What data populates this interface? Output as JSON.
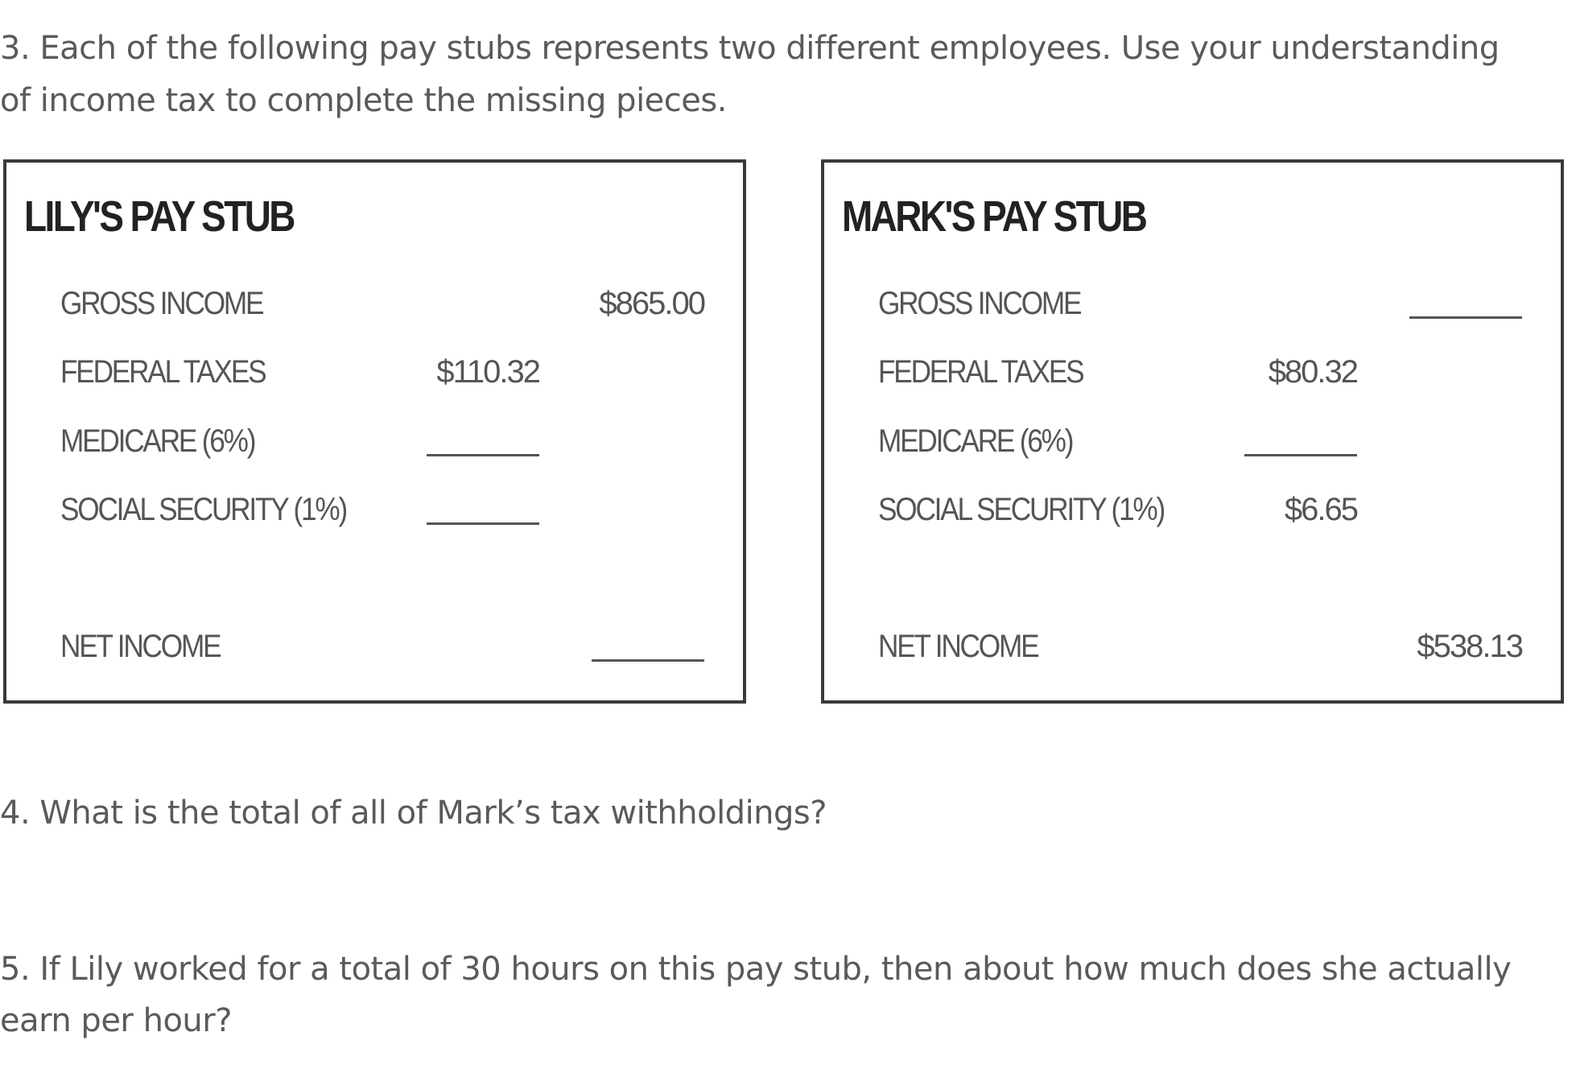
{
  "questions": {
    "q3_line1": "3.  Each of the following pay stubs represents two different employees.  Use your understanding",
    "q3_line2": "of income tax to complete the missing pieces.",
    "q4": "4.  What is the total of all of Mark’s tax withholdings?",
    "q5_line1": "5.  If Lily worked for a total of 30 hours on this pay stub, then about how much does she actually",
    "q5_line2": "earn per hour?"
  },
  "lily": {
    "title": "LILY'S PAY STUB",
    "gross_label": "GROSS INCOME",
    "gross_value": "$865.00",
    "federal_label": "FEDERAL TAXES",
    "federal_value": "$110.32",
    "medicare_label": "MEDICARE (6%)",
    "social_label": "SOCIAL SECURITY (1%)",
    "net_label": "NET INCOME"
  },
  "mark": {
    "title": "MARK'S PAY STUB",
    "gross_label": "GROSS INCOME",
    "federal_label": "FEDERAL TAXES",
    "federal_value": "$80.32",
    "medicare_label": "MEDICARE (6%)",
    "social_label": "SOCIAL SECURITY (1%)",
    "social_value": "$6.65",
    "net_label": "NET INCOME",
    "net_value": "$538.13"
  }
}
